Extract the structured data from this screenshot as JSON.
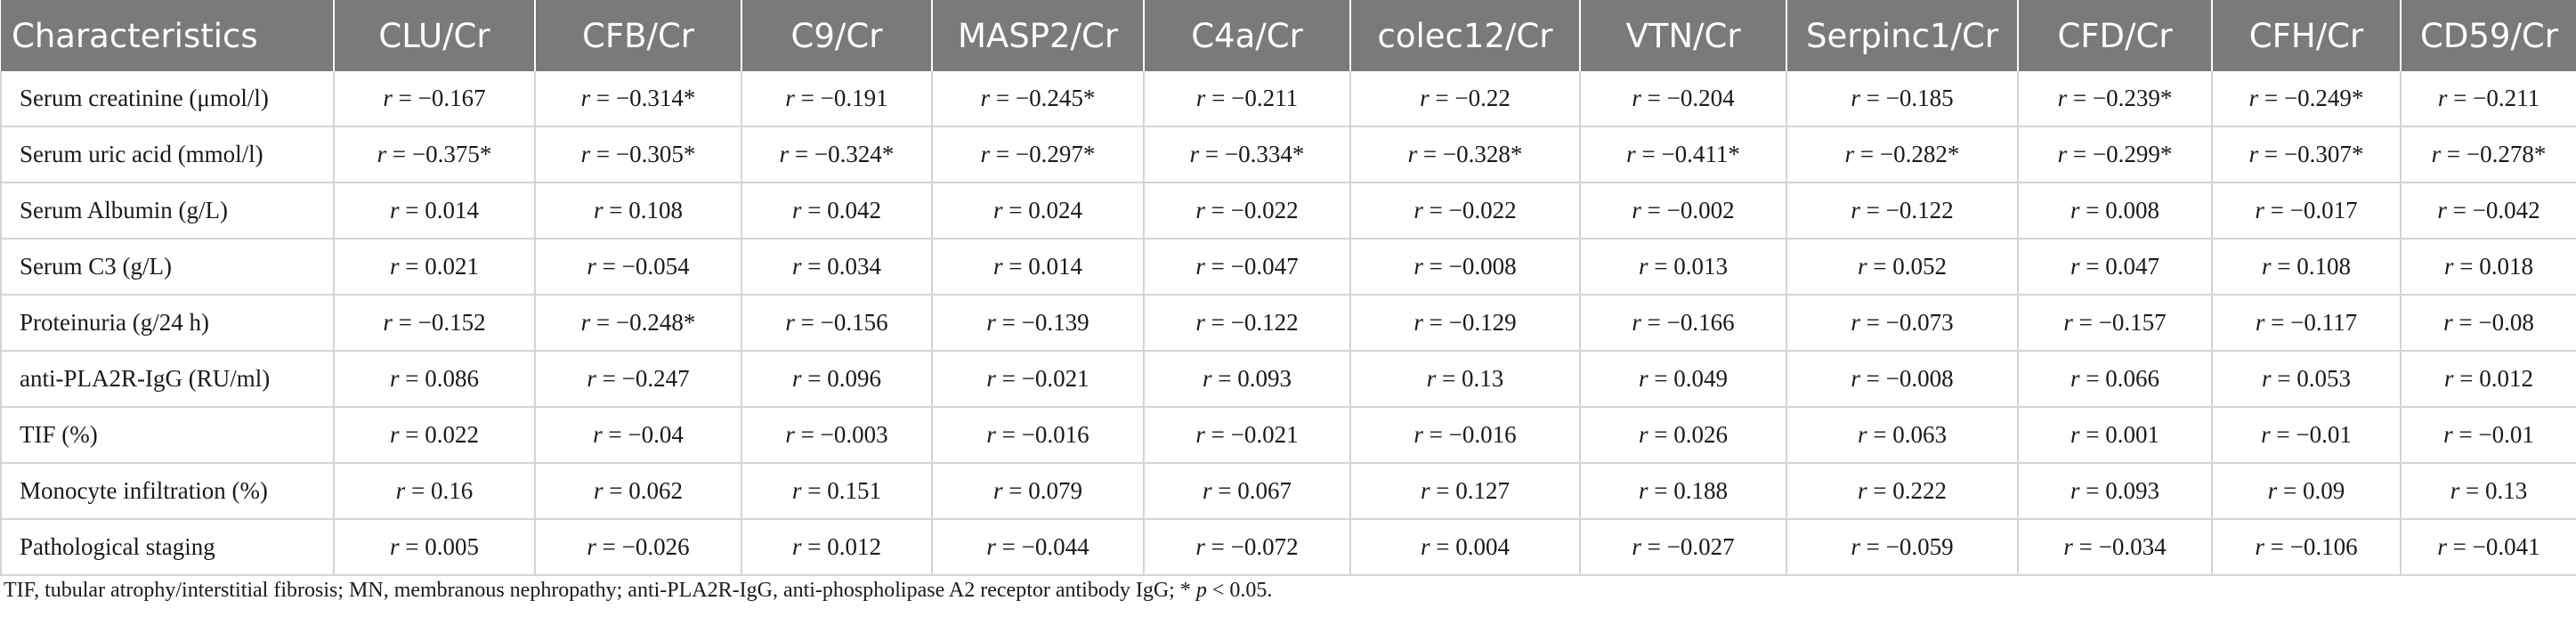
{
  "table": {
    "headers": [
      "Characteristics",
      "CLU/Cr",
      "CFB/Cr",
      "C9/Cr",
      "MASP2/Cr",
      "C4a/Cr",
      "colec12/Cr",
      "VTN/Cr",
      "Serpinc1/Cr",
      "CFD/Cr",
      "CFH/Cr",
      "CD59/Cr"
    ],
    "rows": [
      {
        "label": "Serum creatinine (μmol/l)",
        "values": [
          "−0.167",
          "−0.314*",
          "−0.191",
          "−0.245*",
          "−0.211",
          "−0.22",
          "−0.204",
          "−0.185",
          "−0.239*",
          "−0.249*",
          "−0.211"
        ]
      },
      {
        "label": "Serum uric acid (mmol/l)",
        "values": [
          "−0.375*",
          "−0.305*",
          "−0.324*",
          "−0.297*",
          "−0.334*",
          "−0.328*",
          "−0.411*",
          "−0.282*",
          "−0.299*",
          "−0.307*",
          "−0.278*"
        ]
      },
      {
        "label": "Serum Albumin (g/L)",
        "values": [
          "0.014",
          "0.108",
          "0.042",
          "0.024",
          "−0.022",
          "−0.022",
          "−0.002",
          "−0.122",
          "0.008",
          "−0.017",
          "−0.042"
        ]
      },
      {
        "label": "Serum C3 (g/L)",
        "values": [
          "0.021",
          "−0.054",
          "0.034",
          "0.014",
          "−0.047",
          "−0.008",
          "0.013",
          "0.052",
          "0.047",
          "0.108",
          "0.018"
        ]
      },
      {
        "label": "Proteinuria (g/24 h)",
        "values": [
          "−0.152",
          "−0.248*",
          "−0.156",
          "−0.139",
          "−0.122",
          "−0.129",
          "−0.166",
          "−0.073",
          "−0.157",
          "−0.117",
          "−0.08"
        ]
      },
      {
        "label": "anti-PLA2R-IgG (RU/ml)",
        "values": [
          "0.086",
          "−0.247",
          "0.096",
          "−0.021",
          "0.093",
          "0.13",
          "0.049",
          "−0.008",
          "0.066",
          "0.053",
          "0.012"
        ]
      },
      {
        "label": "TIF (%)",
        "values": [
          "0.022",
          "−0.04",
          "−0.003",
          "−0.016",
          "−0.021",
          "−0.016",
          "0.026",
          "0.063",
          "0.001",
          "−0.01",
          "−0.01"
        ]
      },
      {
        "label": "Monocyte infiltration (%)",
        "values": [
          "0.16",
          "0.062",
          "0.151",
          "0.079",
          "0.067",
          "0.127",
          "0.188",
          "0.222",
          "0.093",
          "0.09",
          "0.13"
        ]
      },
      {
        "label": "Pathological staging",
        "values": [
          "0.005",
          "−0.026",
          "0.012",
          "−0.044",
          "−0.072",
          "0.004",
          "−0.027",
          "−0.059",
          "−0.034",
          "−0.106",
          "−0.041"
        ]
      }
    ]
  },
  "cell_prefix": {
    "symbol": "r",
    "operator": " = "
  },
  "footnote": {
    "main": "TIF, tubular atrophy/interstitial fibrosis; MN, membranous nephropathy; anti-PLA2R-IgG, anti-phospholipase A2 receptor antibody IgG; * ",
    "p_symbol": "p",
    "tail": " < 0.05."
  },
  "colors": {
    "header_bg": "#7a7a7a",
    "header_text": "#ffffff",
    "grid": "#d4d4d4",
    "body_text": "#1a1a1a"
  }
}
